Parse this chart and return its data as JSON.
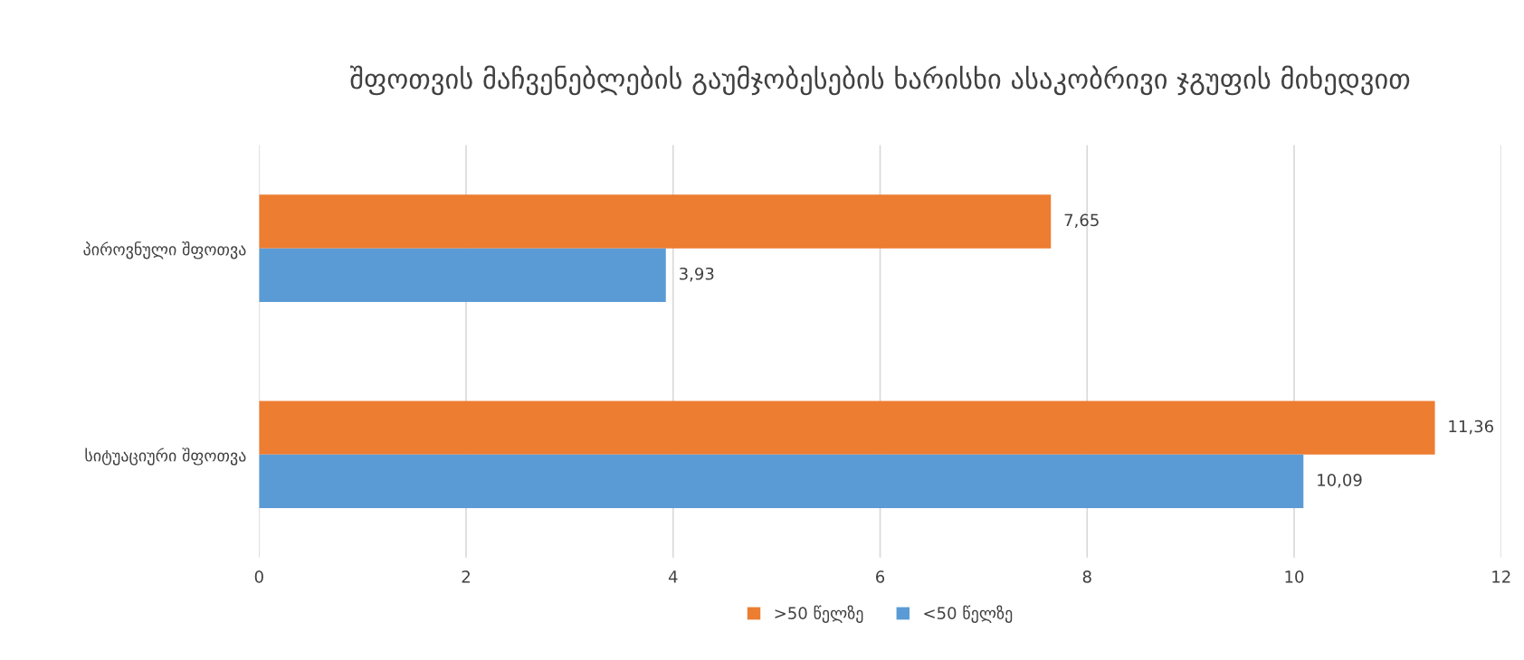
{
  "chart_data": {
    "type": "bar",
    "orientation": "horizontal",
    "title": "შფოთვის მაჩვენებლების გაუმჯობესების ხარისხი ასაკობრივი ჯგუფის მიხედვით",
    "categories": [
      "პიროვნული შფოთვა",
      "სიტუაციური შფოთვა"
    ],
    "series": [
      {
        "name": ">50 წელზე",
        "color": "#ed7d31",
        "values": [
          7.65,
          11.36
        ],
        "value_labels": [
          "7,65",
          "11,36"
        ]
      },
      {
        "name": "<50 წელზე",
        "color": "#5b9bd5",
        "values": [
          3.93,
          10.09
        ],
        "value_labels": [
          "3,93",
          "10,09"
        ]
      }
    ],
    "xlim": [
      0,
      12
    ],
    "xticks": [
      0,
      2,
      4,
      6,
      8,
      10,
      12
    ],
    "grid": "x",
    "legend": "bottom"
  }
}
